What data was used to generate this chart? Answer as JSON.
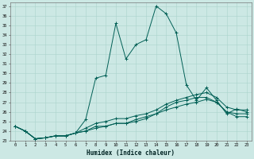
{
  "xlabel": "Humidex (Indice chaleur)",
  "bg_color": "#cce8e4",
  "grid_color": "#aad4cc",
  "line_color": "#005f55",
  "xlim": [
    -0.5,
    23.5
  ],
  "ylim": [
    23,
    37.4
  ],
  "xticks": [
    0,
    1,
    2,
    3,
    4,
    5,
    6,
    7,
    8,
    9,
    10,
    11,
    12,
    13,
    14,
    15,
    16,
    17,
    18,
    19,
    20,
    21,
    22,
    23
  ],
  "yticks": [
    23,
    24,
    25,
    26,
    27,
    28,
    29,
    30,
    31,
    32,
    33,
    34,
    35,
    36,
    37
  ],
  "line1_x": [
    0,
    1,
    2,
    3,
    4,
    5,
    6,
    7,
    8,
    9,
    10,
    11,
    12,
    13,
    14,
    15,
    16,
    17,
    18,
    19,
    20,
    21,
    22,
    23
  ],
  "line1_y": [
    24.5,
    24.0,
    23.2,
    23.3,
    23.5,
    23.5,
    23.8,
    25.2,
    29.5,
    29.8,
    35.2,
    31.5,
    33.0,
    33.5,
    37.0,
    36.2,
    34.2,
    28.8,
    27.2,
    28.5,
    27.2,
    25.8,
    26.3,
    26.0
  ],
  "line2_x": [
    0,
    1,
    2,
    3,
    4,
    5,
    6,
    7,
    8,
    9,
    10,
    11,
    12,
    13,
    14,
    15,
    16,
    17,
    18,
    19,
    20,
    21,
    22,
    23
  ],
  "line2_y": [
    24.5,
    24.0,
    23.2,
    23.3,
    23.5,
    23.5,
    23.8,
    24.3,
    24.8,
    25.0,
    25.3,
    25.3,
    25.6,
    25.8,
    26.2,
    26.8,
    27.2,
    27.5,
    27.8,
    28.0,
    27.5,
    26.5,
    26.2,
    26.2
  ],
  "line3_x": [
    0,
    1,
    2,
    3,
    4,
    5,
    6,
    7,
    8,
    9,
    10,
    11,
    12,
    13,
    14,
    15,
    16,
    17,
    18,
    19,
    20,
    21,
    22,
    23
  ],
  "line3_y": [
    24.5,
    24.0,
    23.2,
    23.3,
    23.5,
    23.5,
    23.8,
    24.0,
    24.5,
    24.5,
    24.8,
    24.8,
    25.2,
    25.5,
    25.8,
    26.5,
    27.0,
    27.2,
    27.5,
    27.5,
    27.0,
    26.0,
    25.8,
    25.8
  ],
  "line4_x": [
    0,
    1,
    2,
    3,
    4,
    5,
    6,
    7,
    8,
    9,
    10,
    11,
    12,
    13,
    14,
    15,
    16,
    17,
    18,
    19,
    20,
    21,
    22,
    23
  ],
  "line4_y": [
    24.5,
    24.0,
    23.2,
    23.3,
    23.5,
    23.5,
    23.8,
    24.0,
    24.3,
    24.5,
    24.8,
    24.8,
    25.0,
    25.3,
    25.8,
    26.2,
    26.5,
    26.8,
    27.0,
    27.3,
    27.0,
    26.0,
    25.5,
    25.5
  ]
}
